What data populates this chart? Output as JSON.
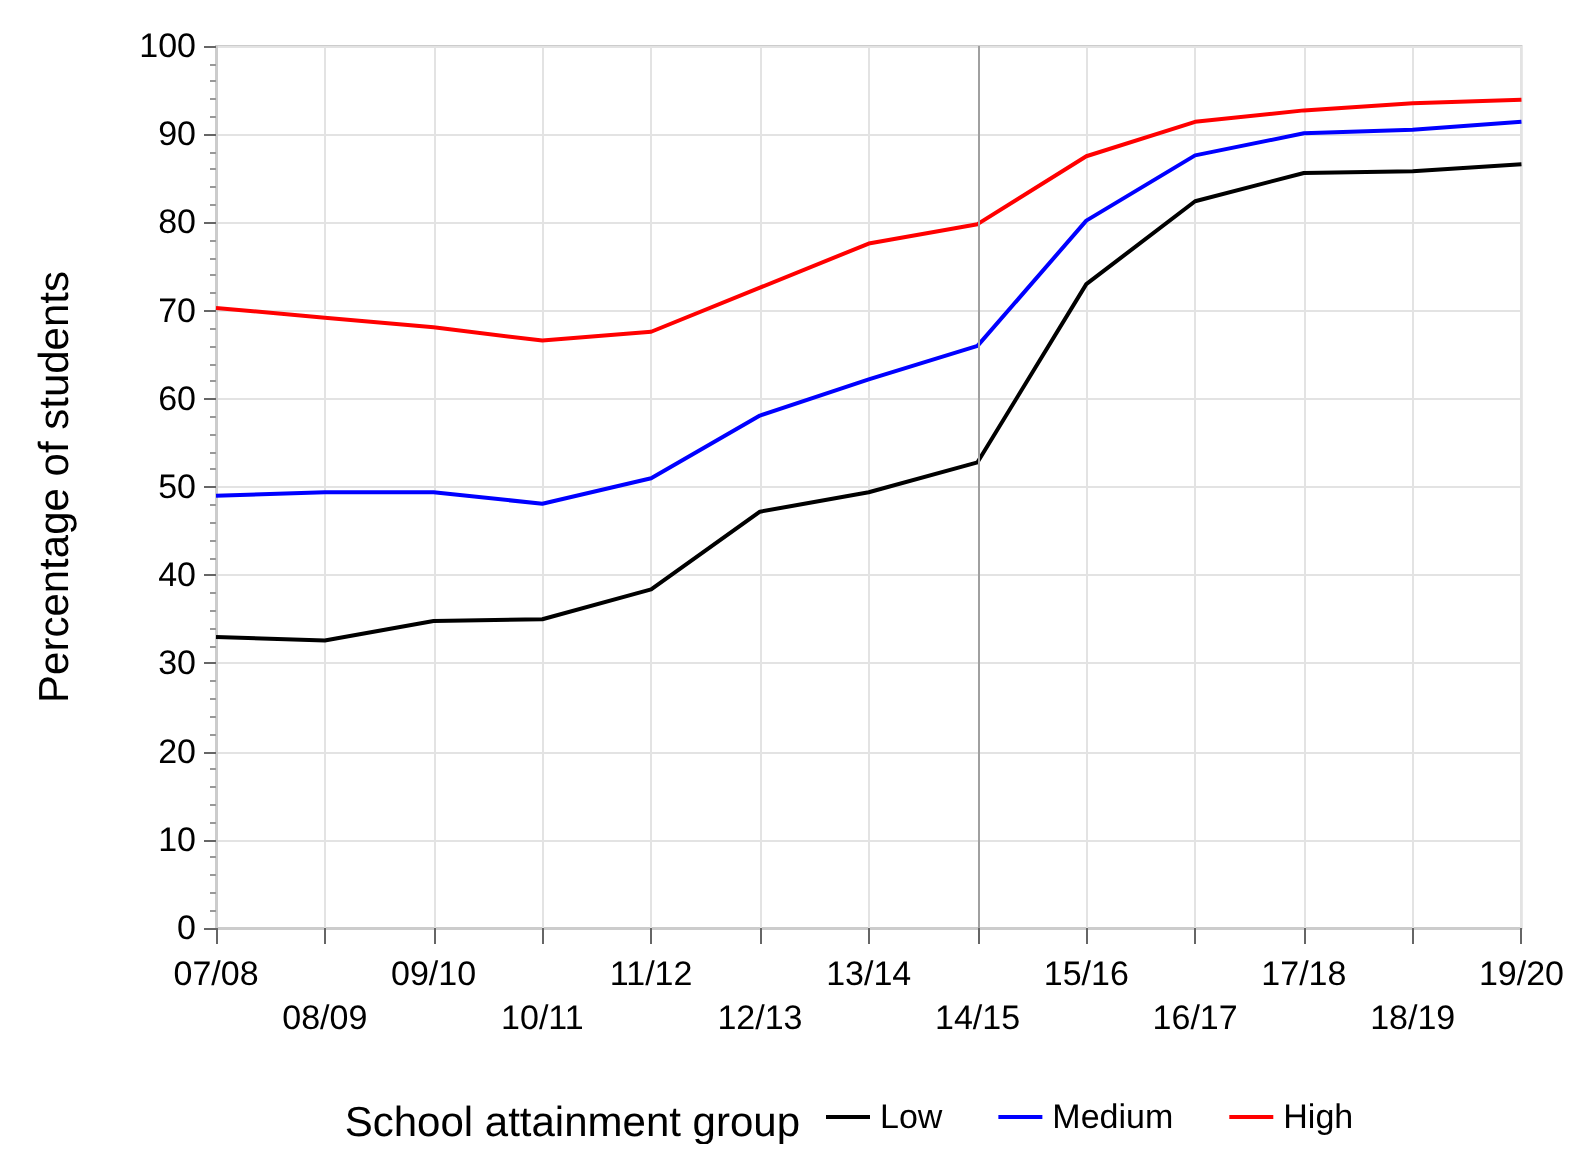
{
  "chart_data": {
    "type": "line",
    "ylabel": "Percentage of students",
    "legend_title": "School attainment group",
    "categories": [
      "07/08",
      "08/09",
      "09/10",
      "10/11",
      "11/12",
      "12/13",
      "13/14",
      "14/15",
      "15/16",
      "16/17",
      "17/18",
      "18/19",
      "19/20"
    ],
    "series": [
      {
        "name": "Low",
        "color": "#000000",
        "values": [
          33.0,
          32.6,
          34.8,
          35.0,
          38.4,
          47.2,
          49.4,
          52.8,
          73.0,
          82.4,
          85.6,
          85.8,
          86.6
        ]
      },
      {
        "name": "Medium",
        "color": "#0000ff",
        "values": [
          49.0,
          49.4,
          49.4,
          48.1,
          51.0,
          58.1,
          62.2,
          66.0,
          80.2,
          87.6,
          90.1,
          90.5,
          91.4
        ]
      },
      {
        "name": "High",
        "color": "#ff0000",
        "values": [
          70.3,
          69.2,
          68.1,
          66.6,
          67.6,
          72.6,
          77.6,
          79.8,
          87.5,
          91.4,
          92.7,
          93.5,
          93.9
        ]
      }
    ],
    "ylim": [
      0,
      100
    ],
    "yticks": [
      0,
      10,
      20,
      30,
      40,
      50,
      60,
      70,
      80,
      90,
      100
    ],
    "ref_lines": [
      {
        "axis": "x",
        "value": "14/15",
        "color": "#a0a0a0"
      }
    ],
    "grid": true,
    "legend": "bottom",
    "marker": "none",
    "line_style": "solid"
  }
}
